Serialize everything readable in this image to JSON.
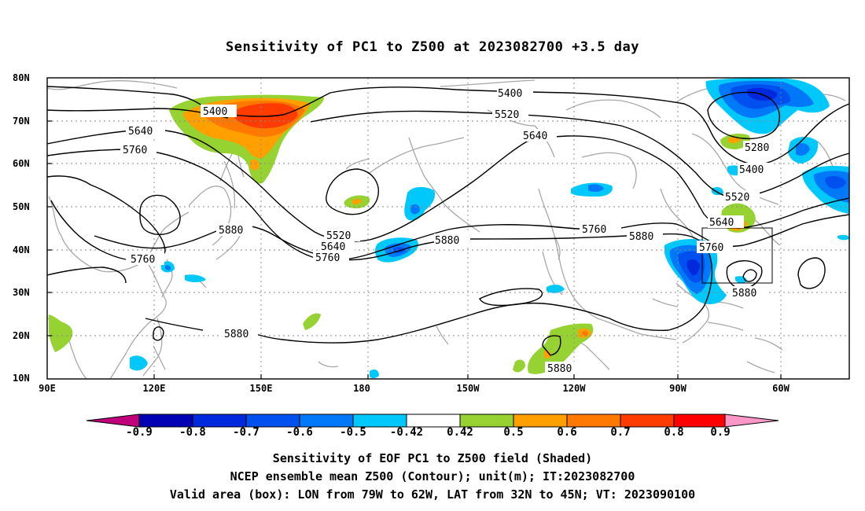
{
  "title": "Sensitivity of PC1 to Z500 at 2023082700 +3.5 day",
  "lat_labels": [
    "80N",
    "70N",
    "60N",
    "50N",
    "40N",
    "30N",
    "20N",
    "10N"
  ],
  "lon_labels": [
    "90E",
    "120E",
    "150E",
    "180",
    "150W",
    "120W",
    "90W",
    "60W"
  ],
  "contour_labels": [
    "5400",
    "5520",
    "5640",
    "5760",
    "5880",
    "5280"
  ],
  "colorbar": {
    "labels": [
      "-0.9",
      "-0.8",
      "-0.7",
      "-0.6",
      "-0.5",
      "-0.42",
      "0.42",
      "0.5",
      "0.6",
      "0.7",
      "0.8",
      "0.9"
    ],
    "colors": [
      "#c0007a",
      "#0000b4",
      "#0028dc",
      "#0050f0",
      "#0078f8",
      "#00c8fa",
      "#ffffff",
      "#96d232",
      "#ffa000",
      "#ff7800",
      "#ff3c00",
      "#ff0000",
      "#ff96c8"
    ]
  },
  "footer": {
    "line1": "Sensitivity of EOF PC1 to Z500 field (Shaded)",
    "line2": "NCEP ensemble mean Z500 (Contour); unit(m); IT:2023082700",
    "line3": "Valid area (box): LON from 79W to 62W, LAT from 32N to 45N; VT: 2023090100"
  }
}
